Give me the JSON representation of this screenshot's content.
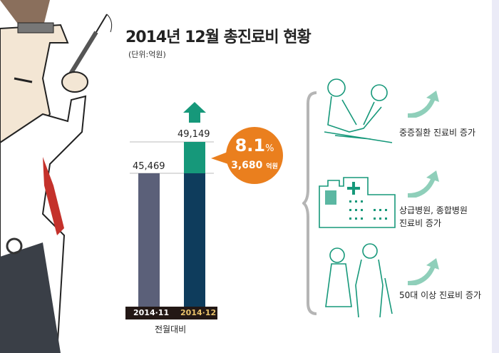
{
  "title": "2014년 12월 총진료비 현황",
  "unit": "(단위:억원)",
  "chart_data": {
    "type": "bar",
    "categories": [
      "2014·11",
      "2014·12"
    ],
    "values": [
      45469,
      49149
    ],
    "value_labels": [
      "45,469",
      "49,149"
    ],
    "xlabel": "전월대비",
    "colors": {
      "nov": "#5b6079",
      "dec_base": "#0e3c5c",
      "increase": "#16987a",
      "highlight": "#ea7f1e"
    },
    "change": {
      "percent": "8.1",
      "percent_unit": "%",
      "amount": "3,680",
      "amount_unit": "억원"
    }
  },
  "factors": [
    {
      "label": "중증질환 진료비 증가",
      "icon": "surgery-icon"
    },
    {
      "label": "상급병원, 종합병원\n진료비 증가",
      "line1": "상급병원, 종합병원",
      "line2": "진료비 증가",
      "icon": "hospital-icon"
    },
    {
      "label": "50대 이상 진료비 증가",
      "icon": "elderly-couple-icon"
    }
  ]
}
